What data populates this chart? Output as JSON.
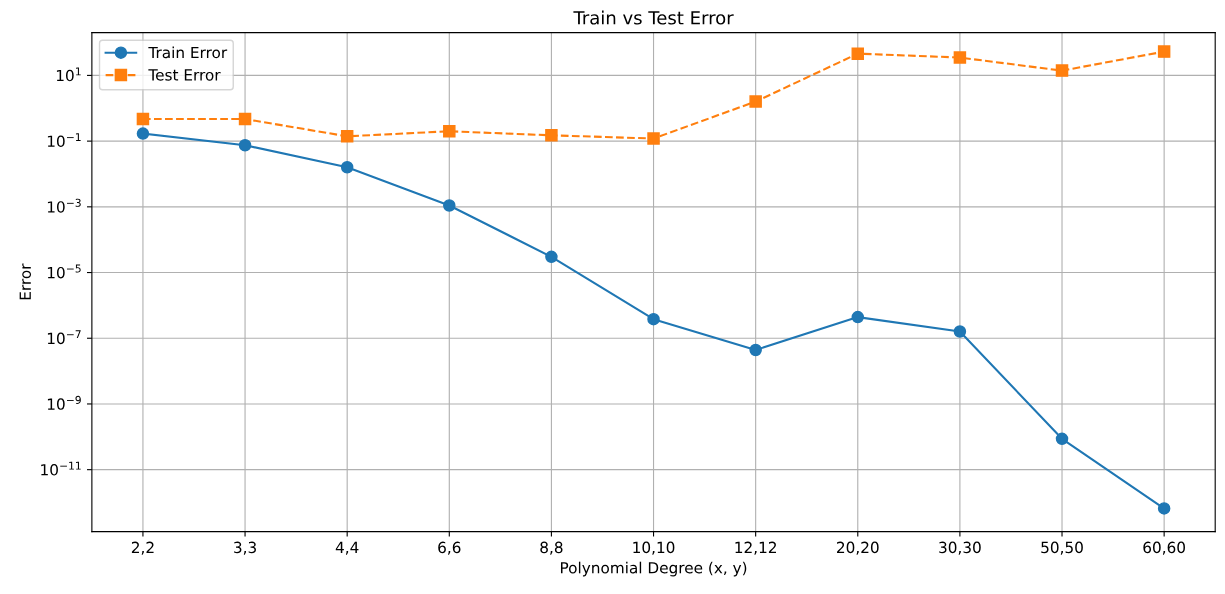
{
  "chart_data": {
    "type": "line",
    "title": "Train vs Test Error",
    "xlabel": "Polynomial Degree (x, y)",
    "ylabel": "Error",
    "categories": [
      "2,2",
      "3,3",
      "4,4",
      "6,6",
      "8,8",
      "10,10",
      "12,12",
      "20,20",
      "30,30",
      "50,50",
      "60,60"
    ],
    "series": [
      {
        "name": "Train Error",
        "color": "#1f77b4",
        "marker": "circle",
        "line_style": "solid",
        "values": [
          0.17,
          0.075,
          0.016,
          0.0011,
          3e-05,
          3.8e-07,
          4.4e-08,
          4.4e-07,
          1.6e-07,
          8.7e-11,
          6.6e-13
        ]
      },
      {
        "name": "Test Error",
        "color": "#ff7f0e",
        "marker": "square",
        "line_style": "dashed",
        "values": [
          0.47,
          0.47,
          0.14,
          0.2,
          0.15,
          0.12,
          1.6,
          46,
          35,
          14,
          53
        ]
      }
    ],
    "log": "y",
    "ylim": [
      1.3e-13,
      200
    ],
    "yticks": [
      {
        "value": 1e-11,
        "label": "10$^{−11}$"
      },
      {
        "value": 1e-09,
        "label": "10$^{−9}$"
      },
      {
        "value": 1e-07,
        "label": "10$^{−7}$"
      },
      {
        "value": 1e-05,
        "label": "10$^{−5}$"
      },
      {
        "value": 0.001,
        "label": "10$^{−3}$"
      },
      {
        "value": 0.1,
        "label": "10$^{−1}$"
      },
      {
        "value": 10,
        "label": "10$^{1}$"
      }
    ],
    "grid": true,
    "legend": "top left"
  }
}
